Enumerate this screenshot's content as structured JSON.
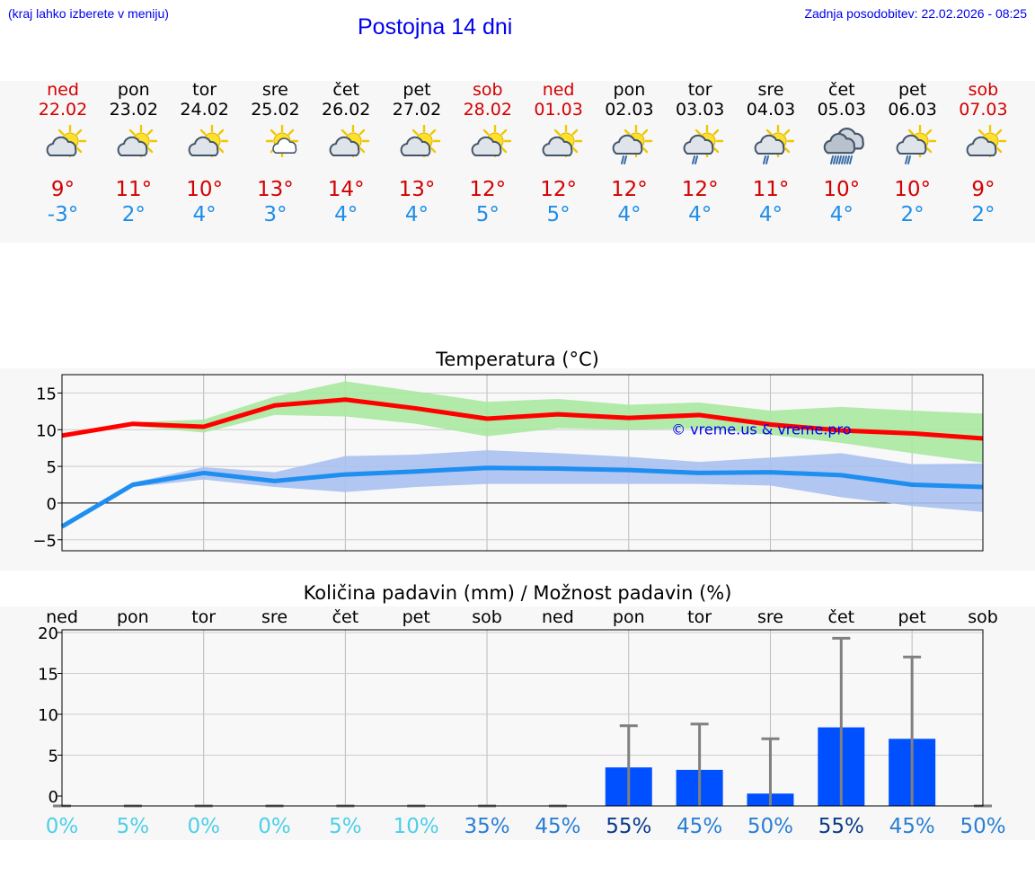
{
  "header": {
    "menu_hint": "(kraj lahko izberete v meniju)",
    "title": "Postojna 14 dni",
    "last_update": "Zadnja posodobitev: 22.02.2026 - 08:25"
  },
  "days": [
    {
      "name": "ned",
      "date": "22.02",
      "icon": "sun-cloud-icon",
      "max": "9°",
      "min": "-3°",
      "weekend": true
    },
    {
      "name": "pon",
      "date": "23.02",
      "icon": "sun-cloud-icon",
      "max": "11°",
      "min": "2°",
      "weekend": false
    },
    {
      "name": "tor",
      "date": "24.02",
      "icon": "sun-cloud-icon",
      "max": "10°",
      "min": "4°",
      "weekend": false
    },
    {
      "name": "sre",
      "date": "25.02",
      "icon": "sun-small-cloud-icon",
      "max": "13°",
      "min": "3°",
      "weekend": false
    },
    {
      "name": "čet",
      "date": "26.02",
      "icon": "sun-cloud-icon",
      "max": "14°",
      "min": "4°",
      "weekend": false
    },
    {
      "name": "pet",
      "date": "27.02",
      "icon": "sun-cloud-icon",
      "max": "13°",
      "min": "4°",
      "weekend": false
    },
    {
      "name": "sob",
      "date": "28.02",
      "icon": "sun-cloud-icon",
      "max": "12°",
      "min": "5°",
      "weekend": true
    },
    {
      "name": "ned",
      "date": "01.03",
      "icon": "sun-cloud-icon",
      "max": "12°",
      "min": "5°",
      "weekend": true
    },
    {
      "name": "pon",
      "date": "02.03",
      "icon": "sun-cloud-rain-icon",
      "max": "12°",
      "min": "4°",
      "weekend": false
    },
    {
      "name": "tor",
      "date": "03.03",
      "icon": "sun-cloud-rain-icon",
      "max": "12°",
      "min": "4°",
      "weekend": false
    },
    {
      "name": "sre",
      "date": "04.03",
      "icon": "sun-cloud-rain-icon",
      "max": "11°",
      "min": "4°",
      "weekend": false
    },
    {
      "name": "čet",
      "date": "05.03",
      "icon": "cloud-heavy-rain-icon",
      "max": "10°",
      "min": "4°",
      "weekend": false
    },
    {
      "name": "pet",
      "date": "06.03",
      "icon": "sun-cloud-rain-icon",
      "max": "10°",
      "min": "2°",
      "weekend": false
    },
    {
      "name": "sob",
      "date": "07.03",
      "icon": "sun-cloud-icon",
      "max": "9°",
      "min": "2°",
      "weekend": true
    }
  ],
  "colors": {
    "max_line": "#ff0000",
    "max_band": "#a8e8a0",
    "min_line": "#1e8ef0",
    "min_band": "#a8c0f0",
    "bar": "#0050ff",
    "whisker": "#808080",
    "link": "#0000ee"
  },
  "chart_data": [
    {
      "type": "line",
      "title": "Temperatura (°C)",
      "watermark": "© vreme.us & vreme.pro",
      "x": [
        0,
        1,
        2,
        3,
        4,
        5,
        6,
        7,
        8,
        9,
        10,
        11,
        12,
        13
      ],
      "ylim": [
        -6.5,
        17.5
      ],
      "yticks": [
        -5,
        0,
        5,
        10,
        15
      ],
      "ytick_labels": [
        "−5",
        "0",
        "5",
        "10",
        "15"
      ],
      "series": [
        {
          "name": "max",
          "values": [
            9.2,
            10.8,
            10.4,
            13.3,
            14.1,
            12.9,
            11.5,
            12.1,
            11.6,
            12.0,
            10.7,
            9.9,
            9.5,
            8.8
          ],
          "band_low": [
            9.2,
            10.5,
            9.6,
            12.0,
            11.8,
            10.8,
            9.1,
            10.2,
            10.0,
            10.2,
            9.3,
            8.2,
            6.8,
            5.5
          ],
          "band_high": [
            9.2,
            11.0,
            11.4,
            14.5,
            16.6,
            15.2,
            13.8,
            14.2,
            13.4,
            13.7,
            12.6,
            13.1,
            12.6,
            12.2
          ]
        },
        {
          "name": "min",
          "values": [
            -3.2,
            2.5,
            4.1,
            3.0,
            3.9,
            4.3,
            4.8,
            4.7,
            4.5,
            4.1,
            4.2,
            3.8,
            2.5,
            2.2
          ],
          "band_low": [
            -3.2,
            2.2,
            3.2,
            2.2,
            1.5,
            2.2,
            2.6,
            2.6,
            2.6,
            2.6,
            2.4,
            0.8,
            -0.4,
            -1.2
          ],
          "band_high": [
            -3.2,
            2.8,
            4.9,
            4.2,
            6.4,
            6.6,
            7.2,
            6.8,
            6.3,
            5.6,
            6.2,
            6.8,
            5.3,
            5.4
          ]
        }
      ]
    },
    {
      "type": "bar",
      "title": "Količina padavin (mm) / Možnost padavin (%)",
      "categories": [
        "ned",
        "pon",
        "tor",
        "sre",
        "čet",
        "pet",
        "sob",
        "ned",
        "pon",
        "tor",
        "sre",
        "čet",
        "pet",
        "sob"
      ],
      "values": [
        0,
        0,
        0,
        0,
        0,
        0,
        0,
        0,
        3.5,
        3.2,
        0.3,
        8.4,
        7.0,
        0
      ],
      "whisker_high": [
        0,
        0,
        0,
        0,
        0,
        0,
        0,
        0,
        8.6,
        8.8,
        7.0,
        19.3,
        17.0,
        0
      ],
      "probability": [
        "0%",
        "5%",
        "0%",
        "0%",
        "5%",
        "10%",
        "35%",
        "45%",
        "55%",
        "45%",
        "50%",
        "55%",
        "45%",
        "50%"
      ],
      "ylim": [
        0,
        20
      ],
      "yticks": [
        0,
        5,
        10,
        15,
        20
      ],
      "ytick_labels": [
        "0",
        "5",
        "10",
        "15",
        "20"
      ]
    }
  ]
}
